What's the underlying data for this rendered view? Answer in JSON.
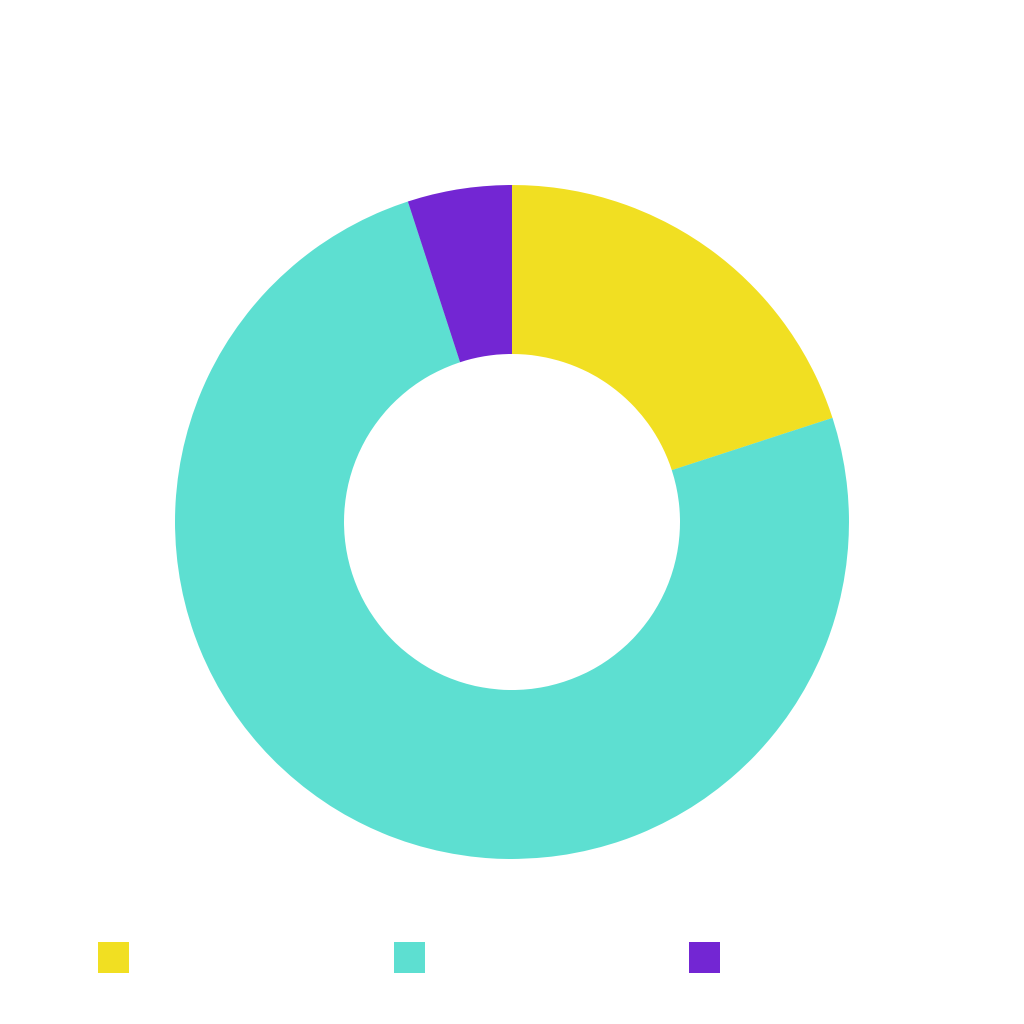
{
  "chart_data": {
    "type": "pie",
    "variant": "donut",
    "title": "",
    "legend_position": "bottom",
    "start_angle": "top",
    "direction": "clockwise",
    "slices": [
      {
        "color": "#f1df22",
        "value": 0.2
      },
      {
        "color": "#5ddfd1",
        "value": 0.75
      },
      {
        "color": "#7326d3",
        "value": 0.05
      }
    ]
  }
}
